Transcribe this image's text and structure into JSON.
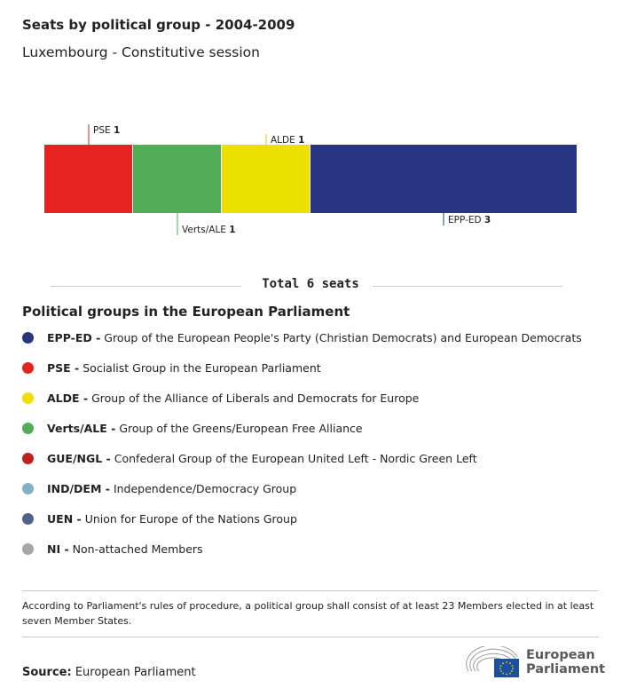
{
  "title": "Seats by political group - 2004-2009",
  "subtitle": "Luxembourg - Constitutive session",
  "chart_data": {
    "type": "bar",
    "orientation": "stacked-horizontal",
    "categories": [
      "PSE",
      "Verts/ALE",
      "ALDE",
      "EPP-ED"
    ],
    "values": [
      1,
      1,
      1,
      3
    ],
    "colors": [
      "#e52421",
      "#52ad57",
      "#ede000",
      "#283580"
    ],
    "label_positions": [
      "top",
      "bottom",
      "top",
      "bottom"
    ]
  },
  "total": "Total 6 seats",
  "legend": {
    "title": "Political groups in the European Parliament",
    "items": [
      {
        "abbr": "EPP-ED -",
        "name": "Group of the European People's Party (Christian Democrats) and European Democrats",
        "color": "#283580"
      },
      {
        "abbr": "PSE -",
        "name": "Socialist Group in the European Parliament",
        "color": "#e52421"
      },
      {
        "abbr": "ALDE -",
        "name": "Group of the Alliance of Liberals and Democrats for Europe",
        "color": "#ede000"
      },
      {
        "abbr": "Verts/ALE -",
        "name": "Group of the Greens/European Free Alliance",
        "color": "#52ad57"
      },
      {
        "abbr": "GUE/NGL -",
        "name": "Confederal Group of the European United Left - Nordic Green Left",
        "color": "#c0201f"
      },
      {
        "abbr": "IND/DEM -",
        "name": "Independence/Democracy Group",
        "color": "#86aec5"
      },
      {
        "abbr": "UEN -",
        "name": "Union for Europe of the Nations Group",
        "color": "#50628c"
      },
      {
        "abbr": "NI -",
        "name": "Non-attached Members",
        "color": "#a6a6a6"
      }
    ]
  },
  "note": "According to Parliament's rules of procedure, a political group shall consist of at least 23 Members elected in at least seven Member States.",
  "source": {
    "label": "Source:",
    "value": "European Parliament"
  },
  "logo": {
    "text1": "European",
    "text2": "Parliament"
  }
}
